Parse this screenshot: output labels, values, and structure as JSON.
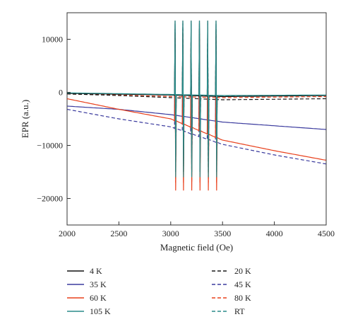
{
  "chart_data": {
    "type": "line",
    "title": "",
    "xlabel": "Magnetic field (Oe)",
    "ylabel": "EPR (a.u.)",
    "xlim": [
      2000,
      4500
    ],
    "ylim": [
      -25000,
      15000
    ],
    "xticks": [
      2000,
      2500,
      3000,
      3500,
      4000,
      4500
    ],
    "yticks": [
      10000,
      0,
      -10000,
      -20000
    ],
    "ytick_labels": [
      "10000",
      "0",
      "−10000",
      "−20000"
    ],
    "grid": false,
    "legend_position": "bottom",
    "hyperfine_lines_center_field": [
      3045,
      3120,
      3200,
      3280,
      3360,
      3440
    ],
    "series": [
      {
        "name": "4 K",
        "color": "#111111",
        "dash": false,
        "x": [
          2000,
          2500,
          3000,
          3500,
          4000,
          4500
        ],
        "y": [
          -200,
          -350,
          -500,
          -800,
          -700,
          -600
        ],
        "peak_max": 13500,
        "peak_min": -15000
      },
      {
        "name": "20 K",
        "color": "#1a1a1a",
        "dash": true,
        "x": [
          2000,
          2500,
          3000,
          3500,
          4000,
          4500
        ],
        "y": [
          -300,
          -600,
          -1000,
          -1400,
          -1300,
          -1200
        ],
        "peak_max": 12000,
        "peak_min": -14000
      },
      {
        "name": "35 K",
        "color": "#3b3b9e",
        "dash": false,
        "x": [
          2000,
          2500,
          3000,
          3500,
          4000,
          4500
        ],
        "y": [
          -2600,
          -3200,
          -4200,
          -5600,
          -6300,
          -7000
        ],
        "peak_max": 9000,
        "peak_min": -12000
      },
      {
        "name": "45 K",
        "color": "#3b3b9e",
        "dash": true,
        "x": [
          2000,
          2500,
          3000,
          3500,
          4000,
          4500
        ],
        "y": [
          -3200,
          -5000,
          -6500,
          -9800,
          -11800,
          -13500
        ],
        "peak_max": 8000,
        "peak_min": -13000
      },
      {
        "name": "60 K",
        "color": "#e8401c",
        "dash": false,
        "x": [
          2000,
          2500,
          3000,
          3500,
          4000,
          4500
        ],
        "y": [
          -1200,
          -3200,
          -5000,
          -9000,
          -11000,
          -12800
        ],
        "peak_max": 11000,
        "peak_min": -18500
      },
      {
        "name": "80 K",
        "color": "#e8401c",
        "dash": true,
        "x": [
          2000,
          2500,
          3000,
          3500,
          4000,
          4500
        ],
        "y": [
          -300,
          -500,
          -800,
          -1000,
          -900,
          -800
        ],
        "peak_max": 10500,
        "peak_min": -17000
      },
      {
        "name": "105 K",
        "color": "#2a8c8a",
        "dash": false,
        "x": [
          2000,
          2500,
          3000,
          3500,
          4000,
          4500
        ],
        "y": [
          -100,
          -250,
          -400,
          -600,
          -550,
          -500
        ],
        "peak_max": 13500,
        "peak_min": -16000
      },
      {
        "name": "RT",
        "color": "#2a8c8a",
        "dash": true,
        "x": [
          2000,
          2500,
          3000,
          3500,
          4000,
          4500
        ],
        "y": [
          -150,
          -300,
          -500,
          -700,
          -650,
          -600
        ],
        "peak_max": 13000,
        "peak_min": -15500
      }
    ]
  }
}
